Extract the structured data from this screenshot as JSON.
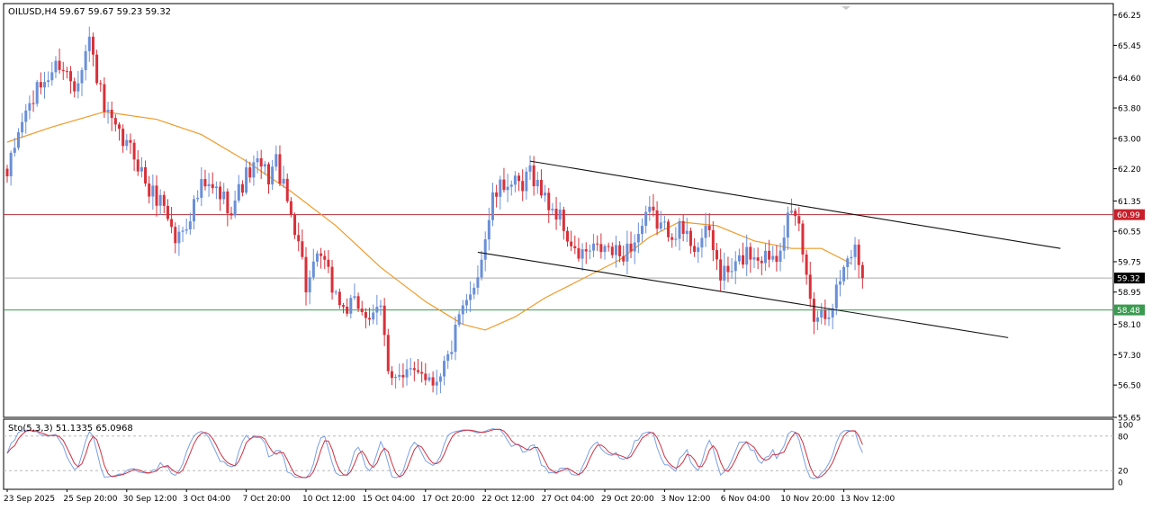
{
  "colors": {
    "bull": "#6a8fd8",
    "bear": "#d9303a",
    "ma": "#f09a28",
    "resistance_line": "#b0303a",
    "support_line": "#3a9a50",
    "current_line": "#aaaaaa",
    "channel": "#111111",
    "stoch_main": "#7aa0e6",
    "stoch_signal": "#d03040",
    "label_red": "#c8202a",
    "label_green": "#3a9a50",
    "label_current": "#000000"
  },
  "chart_data": [
    {
      "type": "candlestick",
      "title": "OILUSD,H4",
      "ohlc_label": "59.67 59.67 59.23 59.32",
      "symbol": "OILUSD",
      "timeframe": "H4",
      "ylim": [
        55.65,
        66.55
      ],
      "y_ticks": [
        "66.25",
        "65.45",
        "64.60",
        "63.80",
        "63.00",
        "62.20",
        "61.35",
        "60.55",
        "59.75",
        "58.95",
        "58.10",
        "57.30",
        "56.50",
        "55.65"
      ],
      "x_labels": [
        "23 Sep 2025",
        "25 Sep 20:00",
        "30 Sep 12:00",
        "3 Oct 04:00",
        "7 Oct 20:00",
        "10 Oct 12:00",
        "15 Oct 04:00",
        "17 Oct 20:00",
        "22 Oct 12:00",
        "27 Oct 04:00",
        "29 Oct 20:00",
        "3 Nov 12:00",
        "6 Nov 04:00",
        "10 Nov 20:00",
        "13 Nov 12:00"
      ],
      "x_label_bars": [
        0,
        16,
        32,
        48,
        64,
        80,
        96,
        112,
        128,
        144,
        160,
        176,
        192,
        208,
        224
      ],
      "horizontal_lines": [
        {
          "price": 60.99,
          "label": "60.99",
          "role": "resistance"
        },
        {
          "price": 58.48,
          "label": "58.48",
          "role": "support"
        },
        {
          "price": 59.32,
          "label": "59.32",
          "role": "current"
        }
      ],
      "channel": {
        "upper": {
          "from": {
            "bar": 140,
            "price": 62.4
          },
          "to": {
            "bar": 282,
            "price": 60.1
          }
        },
        "lower": {
          "from": {
            "bar": 126,
            "price": 60.0
          },
          "to": {
            "bar": 268,
            "price": 57.75
          }
        }
      },
      "moving_average_anchors": [
        [
          0,
          62.9
        ],
        [
          12,
          63.3
        ],
        [
          26,
          63.7
        ],
        [
          40,
          63.5
        ],
        [
          52,
          63.1
        ],
        [
          64,
          62.4
        ],
        [
          76,
          61.6
        ],
        [
          88,
          60.7
        ],
        [
          100,
          59.6
        ],
        [
          112,
          58.7
        ],
        [
          122,
          58.1
        ],
        [
          128,
          57.95
        ],
        [
          136,
          58.3
        ],
        [
          144,
          58.8
        ],
        [
          154,
          59.3
        ],
        [
          164,
          59.8
        ],
        [
          172,
          60.4
        ],
        [
          180,
          60.8
        ],
        [
          190,
          60.7
        ],
        [
          200,
          60.3
        ],
        [
          210,
          60.1
        ],
        [
          218,
          60.1
        ],
        [
          226,
          59.7
        ]
      ],
      "price_path": [
        [
          0,
          62.0
        ],
        [
          4,
          63.5
        ],
        [
          9,
          64.4
        ],
        [
          14,
          65.0
        ],
        [
          18,
          64.4
        ],
        [
          22,
          65.6
        ],
        [
          26,
          63.7
        ],
        [
          30,
          63.0
        ],
        [
          34,
          62.6
        ],
        [
          38,
          61.6
        ],
        [
          42,
          61.3
        ],
        [
          45,
          60.3
        ],
        [
          48,
          60.8
        ],
        [
          52,
          61.7
        ],
        [
          56,
          61.6
        ],
        [
          60,
          61.2
        ],
        [
          64,
          62.0
        ],
        [
          67,
          62.3
        ],
        [
          70,
          62.0
        ],
        [
          72,
          62.4
        ],
        [
          75,
          61.3
        ],
        [
          78,
          60.4
        ],
        [
          80,
          59.1
        ],
        [
          84,
          59.9
        ],
        [
          87,
          59.1
        ],
        [
          90,
          58.5
        ],
        [
          94,
          58.6
        ],
        [
          98,
          58.2
        ],
        [
          100,
          58.5
        ],
        [
          102,
          57.0
        ],
        [
          106,
          56.6
        ],
        [
          110,
          57.0
        ],
        [
          114,
          56.6
        ],
        [
          118,
          57.2
        ],
        [
          121,
          58.2
        ],
        [
          124,
          58.8
        ],
        [
          127,
          59.9
        ],
        [
          130,
          61.4
        ],
        [
          134,
          61.9
        ],
        [
          138,
          61.6
        ],
        [
          140,
          62.2
        ],
        [
          144,
          61.4
        ],
        [
          148,
          60.9
        ],
        [
          152,
          59.9
        ],
        [
          156,
          60.0
        ],
        [
          160,
          60.1
        ],
        [
          164,
          59.9
        ],
        [
          168,
          60.3
        ],
        [
          172,
          61.0
        ],
        [
          176,
          60.6
        ],
        [
          180,
          60.6
        ],
        [
          184,
          60.2
        ],
        [
          188,
          60.5
        ],
        [
          191,
          59.4
        ],
        [
          194,
          59.5
        ],
        [
          198,
          60.0
        ],
        [
          202,
          59.9
        ],
        [
          206,
          60.0
        ],
        [
          209,
          60.9
        ],
        [
          212,
          60.7
        ],
        [
          214,
          59.3
        ],
        [
          216,
          58.4
        ],
        [
          219,
          58.4
        ],
        [
          221,
          58.7
        ],
        [
          223,
          59.3
        ],
        [
          225,
          59.9
        ],
        [
          227,
          60.1
        ],
        [
          229,
          59.32
        ]
      ]
    },
    {
      "type": "line",
      "title": "Sto(5,3,3) 51.1335 65.0968",
      "indicator": "Stochastic",
      "params": [
        5,
        3,
        3
      ],
      "main_value": 51.1335,
      "signal_value": 65.0968,
      "ylim": [
        0,
        100
      ],
      "y_ticks": [
        "100",
        "80",
        "20",
        "0"
      ],
      "levels": [
        80,
        20
      ],
      "series": [
        {
          "role": "main",
          "color": "#7aa0e6"
        },
        {
          "role": "signal",
          "color": "#d03040"
        }
      ]
    }
  ]
}
